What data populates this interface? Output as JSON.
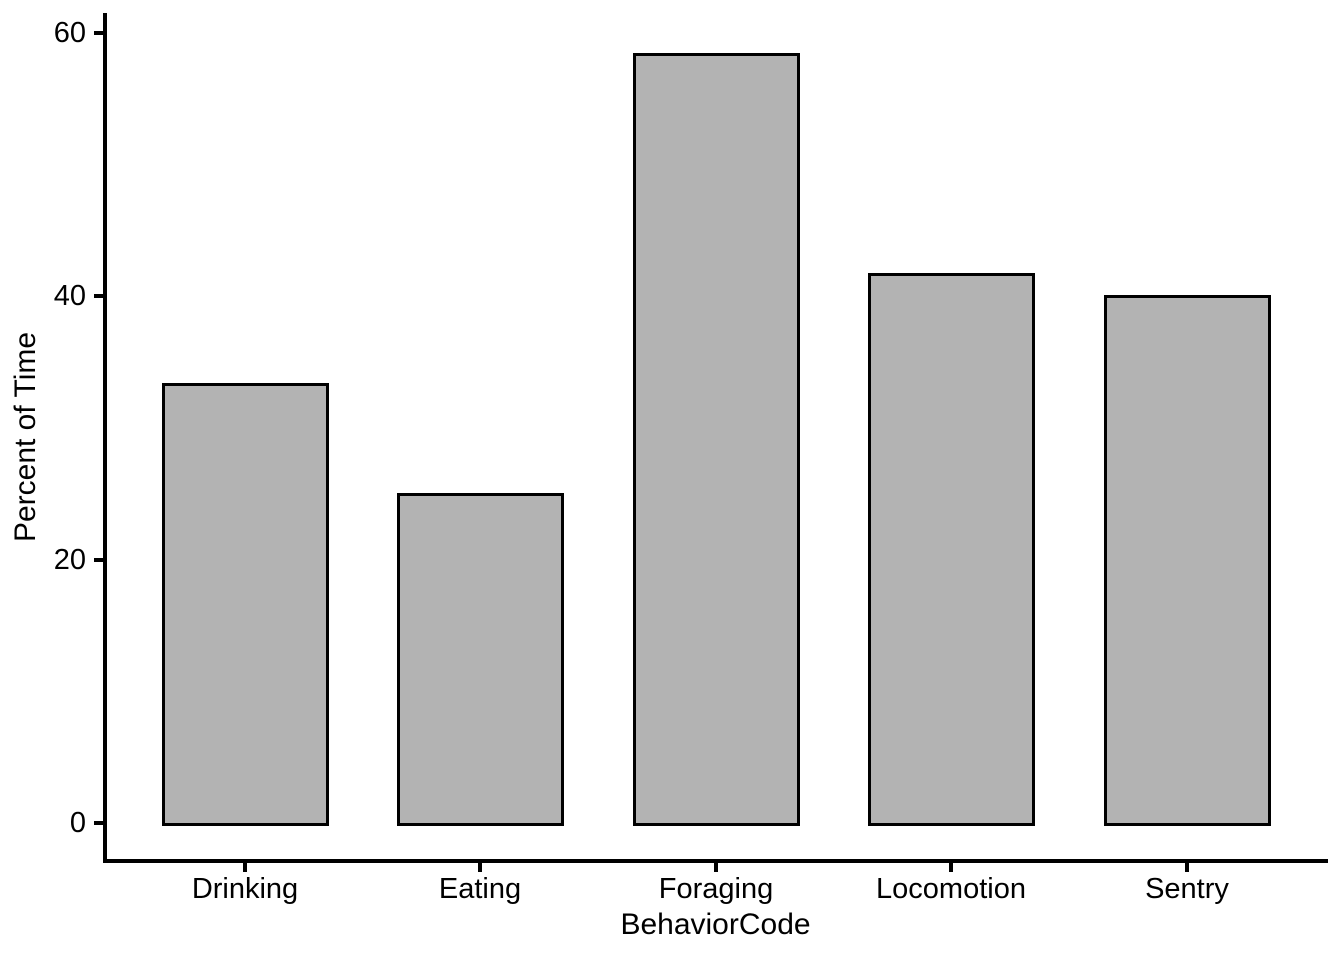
{
  "chart_data": {
    "type": "bar",
    "categories": [
      "Drinking",
      "Eating",
      "Foraging",
      "Locomotion",
      "Sentry"
    ],
    "values": [
      33.4,
      25.1,
      58.5,
      41.8,
      40.1
    ],
    "title": "",
    "xlabel": "BehaviorCode",
    "ylabel": "Percent of Time",
    "ylim": [
      0,
      62
    ],
    "yticks": [
      0,
      20,
      40,
      60
    ],
    "grid": false,
    "legend": false,
    "bar_fill": "#b3b3b3",
    "bar_border": "#000000",
    "axis_color": "#000000",
    "text_color": "#000000"
  }
}
